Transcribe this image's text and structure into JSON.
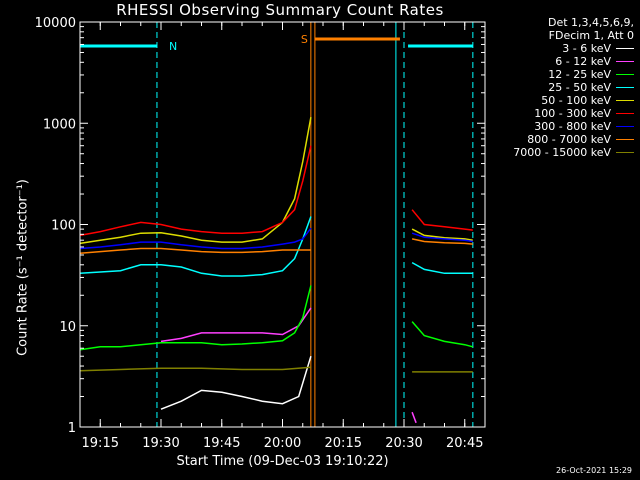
{
  "chart_data": {
    "type": "line",
    "title": "RHESSI Observing Summary Count Rates",
    "xlabel": "Start Time (09-Dec-03 19:10:22)",
    "ylabel": "Count Rate (s⁻¹ detector⁻¹)",
    "yscale": "log",
    "ylim": [
      1,
      10000
    ],
    "xlim": [
      "19:10",
      "20:50"
    ],
    "x_ticks": [
      "19:15",
      "19:30",
      "19:45",
      "20:00",
      "20:15",
      "20:30",
      "20:45"
    ],
    "y_ticks": [
      "1",
      "10",
      "100",
      "1000",
      "10000"
    ],
    "legend_header": [
      "Det 1,3,4,5,6,9,",
      "FDecim 1, Att 0"
    ],
    "legend_position": "top-right, outside plot",
    "series": [
      {
        "name": "3 - 6 keV",
        "color": "#ffffff",
        "x": [
          "19:30",
          "19:35",
          "19:40",
          "19:45",
          "19:50",
          "19:55",
          "20:00",
          "20:04",
          "20:07"
        ],
        "values": [
          1.5,
          1.8,
          2.3,
          2.2,
          2.0,
          1.8,
          1.7,
          2.0,
          5
        ]
      },
      {
        "name": "6 - 12 keV",
        "color": "#ff40ff",
        "x": [
          "19:30",
          "19:35",
          "19:40",
          "19:45",
          "19:50",
          "19:55",
          "20:00",
          "20:04",
          "20:07",
          "20:32",
          "20:33"
        ],
        "values": [
          7,
          7.5,
          8.5,
          8.5,
          8.5,
          8.5,
          8.2,
          10,
          15,
          1.4,
          1.1
        ]
      },
      {
        "name": "12 - 25 keV",
        "color": "#00ff00",
        "x": [
          "19:10",
          "19:15",
          "19:20",
          "19:25",
          "19:30",
          "19:35",
          "19:40",
          "19:45",
          "19:50",
          "19:55",
          "20:00",
          "20:03",
          "20:05",
          "20:07",
          "20:32",
          "20:35",
          "20:40",
          "20:45",
          "20:47"
        ],
        "values": [
          5.8,
          6.2,
          6.2,
          6.5,
          6.8,
          6.8,
          6.8,
          6.5,
          6.6,
          6.8,
          7.1,
          8.5,
          12,
          25,
          11,
          8,
          7,
          6.5,
          6.2
        ]
      },
      {
        "name": "25 - 50 keV",
        "color": "#00ffff",
        "x": [
          "19:10",
          "19:20",
          "19:25",
          "19:30",
          "19:35",
          "19:40",
          "19:45",
          "19:50",
          "19:55",
          "20:00",
          "20:03",
          "20:05",
          "20:07",
          "20:32",
          "20:35",
          "20:40",
          "20:45",
          "20:47"
        ],
        "values": [
          33,
          35,
          40,
          40,
          38,
          33,
          31,
          31,
          32,
          35,
          46,
          72,
          120,
          42,
          36,
          33,
          33,
          33
        ]
      },
      {
        "name": "50 - 100 keV",
        "color": "#dddd00",
        "x": [
          "19:10",
          "19:15",
          "19:20",
          "19:25",
          "19:30",
          "19:35",
          "19:40",
          "19:45",
          "19:50",
          "19:55",
          "20:00",
          "20:03",
          "20:05",
          "20:07",
          "20:32",
          "20:35",
          "20:40",
          "20:45",
          "20:47"
        ],
        "values": [
          65,
          70,
          75,
          82,
          83,
          77,
          70,
          67,
          67,
          72,
          105,
          180,
          420,
          1150,
          90,
          78,
          74,
          72,
          70
        ]
      },
      {
        "name": "100 - 300 keV",
        "color": "#ff0000",
        "x": [
          "19:10",
          "19:15",
          "19:20",
          "19:25",
          "19:30",
          "19:35",
          "19:40",
          "19:45",
          "19:50",
          "19:55",
          "20:00",
          "20:03",
          "20:05",
          "20:07",
          "20:32",
          "20:35",
          "20:40",
          "20:45",
          "20:47"
        ],
        "values": [
          78,
          85,
          95,
          105,
          100,
          90,
          85,
          82,
          82,
          85,
          105,
          140,
          270,
          600,
          140,
          100,
          95,
          90,
          88
        ]
      },
      {
        "name": "300 - 800 keV",
        "color": "#0000ff",
        "x": [
          "19:10",
          "19:15",
          "19:20",
          "19:25",
          "19:30",
          "19:35",
          "19:40",
          "19:45",
          "19:50",
          "19:55",
          "20:00",
          "20:03",
          "20:05",
          "20:07",
          "20:32",
          "20:35",
          "20:40",
          "20:45",
          "20:47"
        ],
        "values": [
          58,
          60,
          63,
          67,
          67,
          63,
          60,
          58,
          58,
          60,
          64,
          67,
          72,
          92,
          82,
          75,
          72,
          70,
          68
        ]
      },
      {
        "name": "800 - 7000 keV",
        "color": "#ff8000",
        "x": [
          "19:10",
          "19:15",
          "19:20",
          "19:25",
          "19:30",
          "19:35",
          "19:40",
          "19:45",
          "19:50",
          "19:55",
          "20:00",
          "20:03",
          "20:05",
          "20:07",
          "20:32",
          "20:35",
          "20:40",
          "20:45",
          "20:47"
        ],
        "values": [
          52,
          54,
          56,
          58,
          58,
          56,
          54,
          53,
          53,
          54,
          56,
          56,
          56,
          56,
          72,
          68,
          66,
          65,
          64
        ]
      },
      {
        "name": "7000 - 15000 keV",
        "color": "#808000",
        "x": [
          "19:10",
          "19:20",
          "19:30",
          "19:40",
          "19:50",
          "20:00",
          "20:07",
          "20:32",
          "20:40",
          "20:47"
        ],
        "values": [
          3.6,
          3.7,
          3.8,
          3.8,
          3.7,
          3.7,
          3.9,
          3.5,
          3.5,
          3.5
        ]
      }
    ],
    "flags": [
      {
        "label": "",
        "color": "#00ffff",
        "x": [
          "19:10",
          "19:29"
        ],
        "value": 5800
      },
      {
        "label": "S",
        "color": "#ff8000",
        "x": [
          "20:08",
          "20:29"
        ],
        "value": 6800
      },
      {
        "label": "",
        "color": "#00ffff",
        "x": [
          "20:31",
          "20:47"
        ],
        "value": 5800
      }
    ],
    "flag_labels": [
      {
        "text": "N",
        "x": "19:31",
        "color": "#00ffff"
      }
    ],
    "markers": [
      {
        "x": "19:10",
        "color": "#00ffff",
        "style": "solid"
      },
      {
        "x": "19:29",
        "color": "#00ffff",
        "style": "dashed"
      },
      {
        "x": "20:07",
        "color": "#ff8000",
        "style": "solid"
      },
      {
        "x": "20:08",
        "color": "#ff8000",
        "style": "solid"
      },
      {
        "x": "20:28",
        "color": "#00ffff",
        "style": "solid"
      },
      {
        "x": "20:30",
        "color": "#00ffff",
        "style": "dashed"
      },
      {
        "x": "20:47",
        "color": "#00ffff",
        "style": "dashed"
      }
    ],
    "grid": false
  },
  "timestamp": "26-Oct-2021 15:29"
}
